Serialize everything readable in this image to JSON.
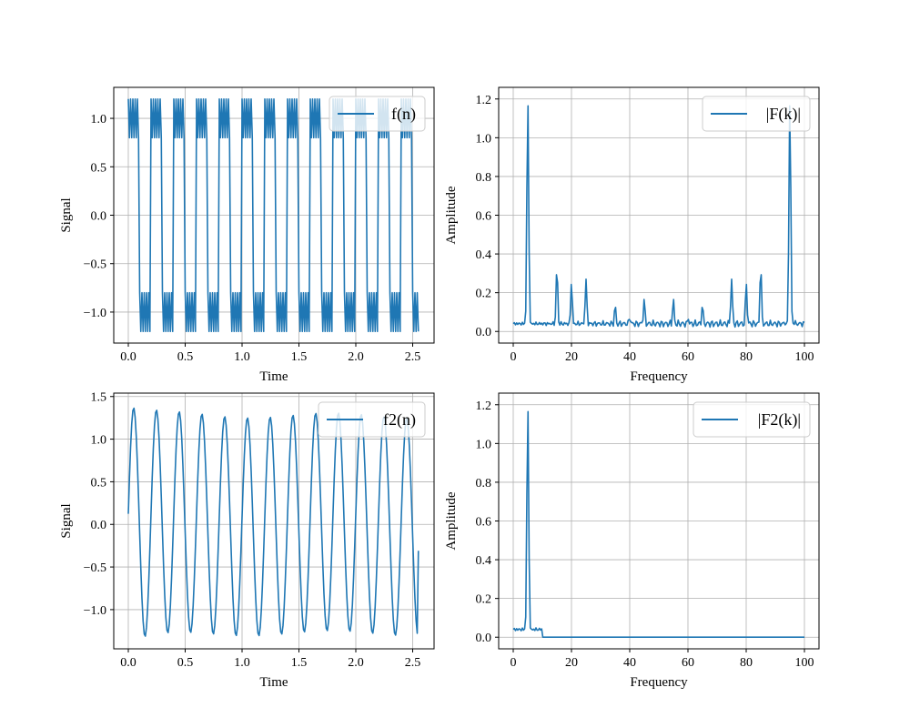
{
  "chart_data": [
    {
      "type": "line",
      "xlabel": "Time",
      "ylabel": "Signal",
      "xlim": [
        -0.128,
        2.688
      ],
      "ylim": [
        -1.32,
        1.32
      ],
      "xticks": [
        0.0,
        0.5,
        1.0,
        1.5,
        2.0,
        2.5
      ],
      "xtick_labels": [
        "0.0",
        "0.5",
        "1.0",
        "1.5",
        "2.0",
        "2.5"
      ],
      "yticks": [
        -1.0,
        -0.5,
        0.0,
        0.5,
        1.0
      ],
      "ytick_labels": [
        "−1.0",
        "−0.5",
        "0.0",
        "0.5",
        "1.0"
      ],
      "grid": true,
      "legend_position": "upper right",
      "series": [
        {
          "name": "f(n)",
          "color": "#1f77b4",
          "x_range": [
            0.0,
            2.55
          ],
          "samples": 256,
          "description_values": "square wave at 5 Hz alternating between about 1.0 and -1.0 with a ripple component; levels 1.2, 0.8, -0.8, -1.2",
          "levels": [
            1.2,
            0.8,
            -0.8,
            -1.2
          ],
          "fundamental_hz": 5,
          "ripple_hz": 50
        }
      ]
    },
    {
      "type": "line",
      "xlabel": "Frequency",
      "ylabel": "Amplitude",
      "xlim": [
        -5,
        105
      ],
      "ylim": [
        -0.06,
        1.26
      ],
      "xticks": [
        0,
        20,
        40,
        60,
        80,
        100
      ],
      "xtick_labels": [
        "0",
        "20",
        "40",
        "60",
        "80",
        "100"
      ],
      "yticks": [
        0.0,
        0.2,
        0.4,
        0.6,
        0.8,
        1.0,
        1.2
      ],
      "ytick_labels": [
        "0.0",
        "0.2",
        "0.4",
        "0.6",
        "0.8",
        "1.0",
        "1.2"
      ],
      "grid": true,
      "legend_position": "upper right",
      "series": [
        {
          "name": "|F(k)|",
          "color": "#1f77b4",
          "x_range": [
            0,
            100
          ],
          "baseline": 0.04,
          "peaks": [
            {
              "x": 5,
              "y": 1.2
            },
            {
              "x": 15,
              "y": 0.33
            },
            {
              "x": 20,
              "y": 0.25
            },
            {
              "x": 25,
              "y": 0.27
            },
            {
              "x": 35,
              "y": 0.14
            },
            {
              "x": 40,
              "y": 0.07
            },
            {
              "x": 45,
              "y": 0.17
            },
            {
              "x": 50,
              "y": 0.04
            },
            {
              "x": 55,
              "y": 0.17
            },
            {
              "x": 60,
              "y": 0.07
            },
            {
              "x": 65,
              "y": 0.14
            },
            {
              "x": 75,
              "y": 0.27
            },
            {
              "x": 80,
              "y": 0.25
            },
            {
              "x": 85,
              "y": 0.33
            },
            {
              "x": 95,
              "y": 1.2
            }
          ]
        }
      ]
    },
    {
      "type": "line",
      "xlabel": "Time",
      "ylabel": "Signal",
      "xlim": [
        -0.128,
        2.688
      ],
      "ylim": [
        -1.46,
        1.54
      ],
      "xticks": [
        0.0,
        0.5,
        1.0,
        1.5,
        2.0,
        2.5
      ],
      "xtick_labels": [
        "0.0",
        "0.5",
        "1.0",
        "1.5",
        "2.0",
        "2.5"
      ],
      "yticks": [
        -1.0,
        -0.5,
        0.0,
        0.5,
        1.0,
        1.5
      ],
      "ytick_labels": [
        "−1.0",
        "−0.5",
        "0.0",
        "0.5",
        "1.0",
        "1.5"
      ],
      "grid": true,
      "legend_position": "upper right",
      "series": [
        {
          "name": "f2(n)",
          "color": "#1f77b4",
          "x_range": [
            0.0,
            2.55
          ],
          "samples": 256,
          "fundamental_hz": 5,
          "start_value": 0.12,
          "end_value": -0.31,
          "max_value": 1.41,
          "min_value": -1.29
        }
      ]
    },
    {
      "type": "line",
      "xlabel": "Frequency",
      "ylabel": "Amplitude",
      "xlim": [
        -5,
        105
      ],
      "ylim": [
        -0.06,
        1.26
      ],
      "xticks": [
        0,
        20,
        40,
        60,
        80,
        100
      ],
      "xtick_labels": [
        "0",
        "20",
        "40",
        "60",
        "80",
        "100"
      ],
      "yticks": [
        0.0,
        0.2,
        0.4,
        0.6,
        0.8,
        1.0,
        1.2
      ],
      "ytick_labels": [
        "0.0",
        "0.2",
        "0.4",
        "0.6",
        "0.8",
        "1.0",
        "1.2"
      ],
      "grid": true,
      "legend_position": "upper right",
      "series": [
        {
          "name": "|F2(k)|",
          "color": "#1f77b4",
          "x_range": [
            0,
            100
          ],
          "baseline": 0.04,
          "peaks": [
            {
              "x": 5,
              "y": 1.2
            }
          ],
          "zero_after": 10
        }
      ]
    }
  ]
}
